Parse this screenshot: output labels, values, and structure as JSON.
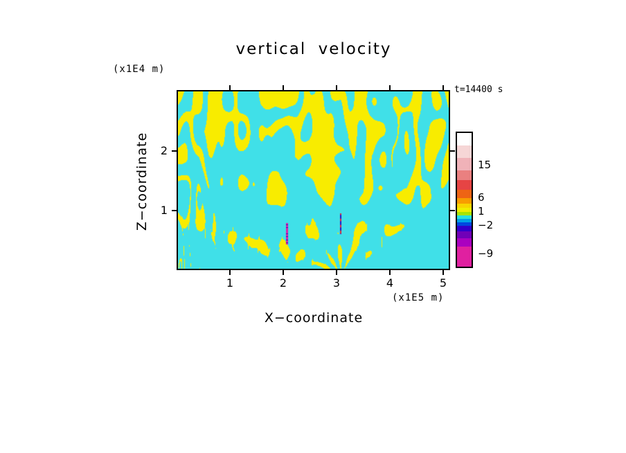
{
  "title": "vertical velocity",
  "annotations": {
    "time_label": "t=14400 s",
    "z_axis_unit": "(x1E4 m)",
    "x_axis_unit": "(x1E5 m)"
  },
  "axes": {
    "x_label": "X−coordinate",
    "z_label": "Z−coordinate",
    "x_ticks": [
      {
        "label": "1",
        "value": 1
      },
      {
        "label": "2",
        "value": 2
      },
      {
        "label": "3",
        "value": 3
      },
      {
        "label": "4",
        "value": 4
      },
      {
        "label": "5",
        "value": 5
      }
    ],
    "z_ticks": [
      {
        "label": "1",
        "value": 1
      },
      {
        "label": "2",
        "value": 2
      }
    ]
  },
  "colorbar": {
    "segments": [
      {
        "color": "#ffffff",
        "height": 18
      },
      {
        "color": "#f6d6d6",
        "height": 18
      },
      {
        "color": "#f0b2b8",
        "height": 18
      },
      {
        "color": "#ea8080",
        "height": 14
      },
      {
        "color": "#e64444",
        "height": 14
      },
      {
        "color": "#ee6414",
        "height": 12
      },
      {
        "color": "#f89c00",
        "height": 8
      },
      {
        "color": "#f8d400",
        "height": 6
      },
      {
        "color": "#f0ee00",
        "height": 6
      },
      {
        "color": "#a8e400",
        "height": 5
      },
      {
        "color": "#28e0e0",
        "height": 5
      },
      {
        "color": "#00a0e8",
        "height": 5
      },
      {
        "color": "#0048e0",
        "height": 5
      },
      {
        "color": "#3000cc",
        "height": 8
      },
      {
        "color": "#7000b8",
        "height": 10
      },
      {
        "color": "#aa00c0",
        "height": 12
      },
      {
        "color": "#e020a0",
        "height": 29
      }
    ],
    "ticks": [
      {
        "label": "15",
        "offset": 46
      },
      {
        "label": "6",
        "offset": 93
      },
      {
        "label": "1",
        "offset": 113
      },
      {
        "label": "−2",
        "offset": 133
      },
      {
        "label": "−9",
        "offset": 174
      }
    ]
  },
  "chart_data": {
    "type": "heatmap",
    "title": "vertical velocity",
    "xlabel": "X−coordinate (x1E5 m)",
    "ylabel": "Z−coordinate (x1E4 m)",
    "time_annotation": "t=14400 s",
    "x_range": [
      0,
      5.13
    ],
    "z_range": [
      0,
      3.02
    ],
    "colorbar_tick_values": [
      15,
      6,
      1,
      -2,
      -9
    ],
    "description": "Filled contour field of vertical velocity: mostly cyan background (values roughly −2..1) with interleaved yellow bands (roughly 1..6) forming wave fans radiating upward from sources near x=2.1 and x=3.1, dense streaks in the upper half and sparse thin vertical filaments near the bottom; tiny extreme-value streaks (magenta/blue/red, beyond ±9) at the two source columns.",
    "render": {
      "background_color": "#40e0e8",
      "band_color": "#f8ec00",
      "sources": [
        {
          "x": 3.08,
          "rays": 12,
          "amp": 1.5,
          "decay": 0.22
        },
        {
          "x": 2.06,
          "rays": 9,
          "amp": 1.1,
          "decay": 0.3
        }
      ],
      "threshold_top": 0.3,
      "threshold_bottom": 1.35,
      "streak_scale_x": 2.3,
      "streak_scale_z": 0.95,
      "streak_bands": 3.0,
      "streak_amp": 0.85,
      "extreme_strips": [
        {
          "x": 3.08,
          "z0": 0.6,
          "z1": 0.95,
          "half_width": 0.016,
          "colors": [
            "#d83030",
            "#7000b8",
            "#2018c0"
          ]
        },
        {
          "x": 2.06,
          "z0": 0.42,
          "z1": 0.78,
          "half_width": 0.018,
          "colors": [
            "#e020a8",
            "#2018c0",
            "#e020a8"
          ]
        }
      ]
    }
  }
}
